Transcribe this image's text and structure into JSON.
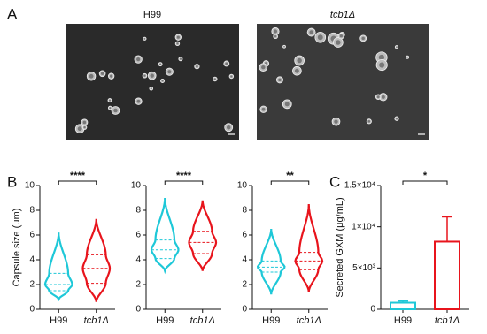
{
  "panel_labels": [
    "A",
    "B",
    "C"
  ],
  "images": [
    {
      "title": "H99"
    },
    {
      "title": "tcb1Δ"
    }
  ],
  "chart_data": [
    {
      "type": "violin",
      "ylabel": "Capsule size (μm)",
      "categories": [
        "H99",
        "tcb1Δ"
      ],
      "ylim": [
        0,
        10
      ],
      "yticks": [
        0,
        2,
        4,
        6,
        8,
        10
      ],
      "significance": "****",
      "series": [
        {
          "name": "H99",
          "color": "#1ec8d8",
          "min": 0.8,
          "q1": 1.5,
          "median": 2.0,
          "q3": 2.9,
          "max": 6.2
        },
        {
          "name": "tcb1Δ",
          "color": "#e8141c",
          "min": 0.6,
          "q1": 2.1,
          "median": 3.3,
          "q3": 4.4,
          "max": 7.3
        }
      ]
    },
    {
      "type": "violin",
      "categories": [
        "H99",
        "tcb1Δ"
      ],
      "ylim": [
        0,
        10
      ],
      "yticks": [
        0,
        2,
        4,
        6,
        8,
        10
      ],
      "significance": "****",
      "series": [
        {
          "name": "H99",
          "color": "#1ec8d8",
          "min": 3.1,
          "q1": 4.1,
          "median": 4.8,
          "q3": 5.6,
          "max": 9.0
        },
        {
          "name": "tcb1Δ",
          "color": "#e8141c",
          "min": 3.1,
          "q1": 4.5,
          "median": 5.4,
          "q3": 6.3,
          "max": 8.8
        }
      ]
    },
    {
      "type": "violin",
      "categories": [
        "H99",
        "tcb1Δ"
      ],
      "ylim": [
        0,
        10
      ],
      "yticks": [
        0,
        2,
        4,
        6,
        8,
        10
      ],
      "significance": "**",
      "series": [
        {
          "name": "H99",
          "color": "#1ec8d8",
          "min": 1.2,
          "q1": 3.0,
          "median": 3.4,
          "q3": 3.9,
          "max": 6.5
        },
        {
          "name": "tcb1Δ",
          "color": "#e8141c",
          "min": 1.4,
          "q1": 3.2,
          "median": 3.9,
          "q3": 4.6,
          "max": 8.5
        }
      ]
    },
    {
      "type": "bar",
      "ylabel": "Secreted GXM (μg/mL)",
      "categories": [
        "H99",
        "tcb1Δ"
      ],
      "ylim": [
        0,
        15000
      ],
      "yticks": [
        0,
        {
          "value": 5000,
          "label": "5×10³"
        },
        {
          "value": 10000,
          "label": "1×10⁴"
        },
        {
          "value": 15000,
          "label": "1.5×10⁴"
        }
      ],
      "values": [
        800,
        8200
      ],
      "errors": [
        200,
        3000
      ],
      "colors": [
        "#1ec8d8",
        "#e8141c"
      ],
      "significance": "*"
    }
  ]
}
